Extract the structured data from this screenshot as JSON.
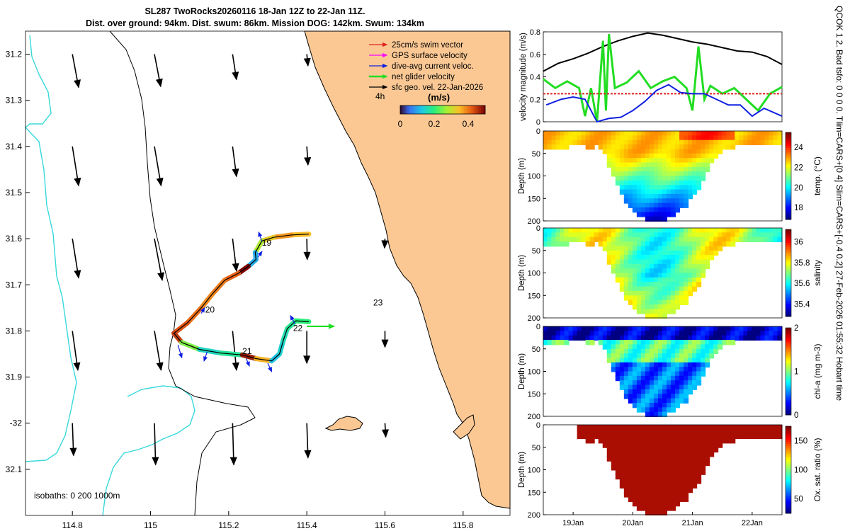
{
  "header": {
    "title_line1": "SL287 TwoRocks20260116 18-Jan 12Z to 22-Jan 11Z.",
    "title_line2": "Dist. over ground: 94km. Dist. swum: 86km. Mission DOG: 142km. Swum: 134km"
  },
  "side_note": "QCOK 1  2. Bad tsfo: 0  0  0  0. Tlim=CARS+[0 4] Slim=CARS+[-0.4 0.2] 27-Feb-2026 01:55:32 Hobart time",
  "colors": {
    "land": "#fbc894",
    "coast": "#000000",
    "isobath": "#38d8dc",
    "swim_vector": "#e02020",
    "gps_velocity": "#ff00ff",
    "current": "#1020e0",
    "net_glider": "#22dd22",
    "sfc_geo": "#000000",
    "speed_line": "#000000"
  },
  "map": {
    "xlim": [
      114.68,
      115.92
    ],
    "ylim": [
      -32.2,
      -31.15
    ],
    "xticks": [
      114.8,
      115,
      115.2,
      115.4,
      115.6,
      115.8
    ],
    "xtick_labels": [
      "114.8",
      "115",
      "115.2",
      "115.4",
      "115.6",
      "115.8"
    ],
    "yticks": [
      -31.2,
      -31.3,
      -31.4,
      -31.5,
      -31.6,
      -31.7,
      -31.8,
      -31.9,
      -32.0,
      -32.1
    ],
    "ytick_labels": [
      "31.2",
      "31.3",
      "31.4",
      "31.5",
      "31.6",
      "31.7",
      "31.8",
      "31.9",
      "-32",
      "32.1"
    ],
    "legend": {
      "items": [
        "25cm/s swim vector",
        "GPS surface velocity",
        "dive-avg current veloc.",
        "net glider velocity",
        "sfc geo. vel. 22-Jan-2026"
      ],
      "time_step": "4h",
      "colorbar_title": "(m/s)",
      "colorbar_ticks": [
        "0",
        "0.2",
        "0.4"
      ],
      "colorbar_range": [
        0,
        0.5
      ]
    },
    "day_labels": [
      {
        "text": "19",
        "lon": 115.285,
        "lat": -31.615
      },
      {
        "text": "20",
        "lon": 115.14,
        "lat": -31.76
      },
      {
        "text": "21",
        "lon": 115.235,
        "lat": -31.85
      },
      {
        "text": "22",
        "lon": 115.365,
        "lat": -31.8
      },
      {
        "text": "23",
        "lon": 115.57,
        "lat": -31.745
      }
    ],
    "isobath_label": "isobaths: 0   200   1000m",
    "track": [
      [
        115.405,
        -31.59
      ],
      [
        115.36,
        -31.592
      ],
      [
        115.315,
        -31.597
      ],
      [
        115.285,
        -31.605
      ],
      [
        115.268,
        -31.63
      ],
      [
        115.27,
        -31.645
      ],
      [
        115.25,
        -31.66
      ],
      [
        115.225,
        -31.675
      ],
      [
        115.19,
        -31.69
      ],
      [
        115.158,
        -31.72
      ],
      [
        115.128,
        -31.752
      ],
      [
        115.095,
        -31.782
      ],
      [
        115.06,
        -31.805
      ],
      [
        115.08,
        -31.825
      ],
      [
        115.125,
        -31.84
      ],
      [
        115.18,
        -31.848
      ],
      [
        115.235,
        -31.852
      ],
      [
        115.27,
        -31.86
      ],
      [
        115.31,
        -31.865
      ],
      [
        115.33,
        -31.85
      ],
      [
        115.34,
        -31.82
      ],
      [
        115.35,
        -31.795
      ],
      [
        115.372,
        -31.778
      ],
      [
        115.405,
        -31.78
      ]
    ],
    "track_speed": [
      0.35,
      0.38,
      0.33,
      0.28,
      0.1,
      0.1,
      0.5,
      0.42,
      0.4,
      0.39,
      0.41,
      0.43,
      0.45,
      0.25,
      0.15,
      0.18,
      0.48,
      0.36,
      0.12,
      0.14,
      0.16,
      0.18,
      0.2,
      0.2
    ],
    "current_vectors": [
      [
        115.285,
        -31.606,
        -0.008,
        0.02
      ],
      [
        115.275,
        -31.64,
        0.01,
        0.012
      ],
      [
        115.13,
        -31.762,
        0.008,
        0.012
      ],
      [
        115.07,
        -31.83,
        0.01,
        -0.028
      ],
      [
        115.145,
        -31.845,
        -0.008,
        -0.02
      ],
      [
        115.245,
        -31.86,
        0.008,
        -0.016
      ],
      [
        115.3,
        -31.87,
        0.01,
        -0.018
      ],
      [
        115.37,
        -31.785,
        -0.012,
        0.018
      ]
    ],
    "net_glider_vector": [
      115.4,
      -31.79,
      0.07,
      0.0
    ],
    "current_field": [
      {
        "lon": 114.8,
        "lat": -31.2,
        "u": 0.016,
        "v": -0.072
      },
      {
        "lon": 115.01,
        "lat": -31.2,
        "u": 0.016,
        "v": -0.07
      },
      {
        "lon": 115.21,
        "lat": -31.2,
        "u": 0.01,
        "v": -0.055
      },
      {
        "lon": 115.4,
        "lat": -31.2,
        "u": 0.003,
        "v": -0.025
      },
      {
        "lon": 114.8,
        "lat": -31.4,
        "u": 0.016,
        "v": -0.085
      },
      {
        "lon": 115.01,
        "lat": -31.4,
        "u": 0.017,
        "v": -0.085
      },
      {
        "lon": 115.21,
        "lat": -31.4,
        "u": 0.01,
        "v": -0.065
      },
      {
        "lon": 115.4,
        "lat": -31.4,
        "u": 0.003,
        "v": -0.04
      },
      {
        "lon": 114.8,
        "lat": -31.6,
        "u": 0.016,
        "v": -0.085
      },
      {
        "lon": 115.01,
        "lat": -31.6,
        "u": 0.02,
        "v": -0.09
      },
      {
        "lon": 115.21,
        "lat": -31.6,
        "u": 0.01,
        "v": -0.07
      },
      {
        "lon": 115.4,
        "lat": -31.6,
        "u": 0.001,
        "v": -0.045
      },
      {
        "lon": 115.6,
        "lat": -31.6,
        "u": -0.001,
        "v": -0.02
      },
      {
        "lon": 114.8,
        "lat": -31.8,
        "u": 0.014,
        "v": -0.085
      },
      {
        "lon": 115.01,
        "lat": -31.8,
        "u": 0.017,
        "v": -0.085
      },
      {
        "lon": 115.21,
        "lat": -31.8,
        "u": 0.01,
        "v": -0.085
      },
      {
        "lon": 115.4,
        "lat": -31.8,
        "u": 0.0,
        "v": -0.07
      },
      {
        "lon": 115.6,
        "lat": -31.8,
        "u": 0.0,
        "v": -0.035
      },
      {
        "lon": 114.8,
        "lat": -32.0,
        "u": 0.003,
        "v": -0.07
      },
      {
        "lon": 115.01,
        "lat": -32.0,
        "u": 0.003,
        "v": -0.09
      },
      {
        "lon": 115.21,
        "lat": -32.0,
        "u": 0.003,
        "v": -0.09
      },
      {
        "lon": 115.4,
        "lat": -32.0,
        "u": 0.003,
        "v": -0.075
      },
      {
        "lon": 115.6,
        "lat": -32.0,
        "u": 0.002,
        "v": -0.03
      }
    ]
  },
  "chart_data": [
    {
      "type": "line",
      "title": "",
      "xlabel": "",
      "ylabel": "velocity magnitude (m/s)",
      "xlim": [
        18.5,
        22.5
      ],
      "ylim": [
        0,
        0.8
      ],
      "yticks": [
        0,
        0.2,
        0.4,
        0.6,
        0.8
      ],
      "ytick_labels": [
        "0",
        "0.2",
        "0.4",
        "0.6",
        "0.8"
      ],
      "series": [
        {
          "name": "sfc geo. speed",
          "color": "#000000",
          "x": [
            18.5,
            18.75,
            19.0,
            19.25,
            19.5,
            19.75,
            20.0,
            20.25,
            20.5,
            20.75,
            21.0,
            21.25,
            21.5,
            21.75,
            22.0,
            22.25,
            22.5
          ],
          "y": [
            0.45,
            0.52,
            0.56,
            0.61,
            0.67,
            0.72,
            0.76,
            0.79,
            0.77,
            0.74,
            0.71,
            0.69,
            0.66,
            0.63,
            0.62,
            0.58,
            0.51
          ]
        },
        {
          "name": "net glider velocity",
          "color": "#22dd22",
          "x": [
            18.5,
            18.7,
            18.9,
            19.1,
            19.2,
            19.3,
            19.4,
            19.5,
            19.55,
            19.6,
            19.7,
            19.9,
            20.1,
            20.3,
            20.5,
            20.7,
            20.9,
            21.0,
            21.1,
            21.2,
            21.3,
            21.5,
            21.7,
            21.9,
            22.1,
            22.3,
            22.5
          ],
          "y": [
            0.38,
            0.3,
            0.36,
            0.3,
            0.05,
            0.3,
            0.0,
            0.72,
            0.1,
            0.78,
            0.3,
            0.35,
            0.45,
            0.3,
            0.36,
            0.4,
            0.3,
            0.1,
            0.67,
            0.2,
            0.32,
            0.25,
            0.3,
            0.2,
            0.1,
            0.25,
            0.31
          ]
        },
        {
          "name": "25cm/s swim vector",
          "color": "#e02020",
          "x": [
            18.5,
            22.5
          ],
          "y": [
            0.25,
            0.25
          ]
        },
        {
          "name": "dive-avg current",
          "color": "#1020e0",
          "x": [
            18.55,
            18.8,
            19.0,
            19.2,
            19.4,
            19.6,
            19.8,
            20.0,
            20.2,
            20.4,
            20.6,
            20.8,
            21.0,
            21.2,
            21.4,
            21.6,
            21.8,
            22.0,
            22.2,
            22.5
          ],
          "y": [
            0.15,
            0.2,
            0.22,
            0.2,
            0.0,
            0.03,
            0.04,
            0.1,
            0.18,
            0.28,
            0.33,
            0.26,
            0.25,
            0.25,
            0.2,
            0.15,
            0.15,
            0.05,
            0.12,
            0.05
          ]
        }
      ]
    },
    {
      "type": "heatmap",
      "variable": "temperature",
      "ylabel": "Depth (m)",
      "colorbar_label": "temp. (°C)",
      "clim": [
        16.8,
        25.5
      ],
      "colorbar_ticks": [
        "18",
        "20",
        "22",
        "24"
      ],
      "colorbar_tick_values": [
        18,
        20,
        22,
        24
      ],
      "ylim": [
        0,
        200
      ],
      "yticks": [
        "0",
        "50",
        "100",
        "150",
        "200"
      ],
      "surface_value": 22.8,
      "deep_value": 17.2
    },
    {
      "type": "heatmap",
      "variable": "salinity",
      "ylabel": "Depth (m)",
      "colorbar_label": "salinity",
      "clim": [
        35.28,
        36.12
      ],
      "colorbar_ticks": [
        "35.4",
        "35.6",
        "35.8",
        "36"
      ],
      "colorbar_tick_values": [
        35.4,
        35.6,
        35.8,
        36.0
      ],
      "ylim": [
        0,
        200
      ],
      "yticks": [
        "0",
        "50",
        "100",
        "150",
        "200"
      ],
      "surface_value": 35.78,
      "deep_value": 35.6
    },
    {
      "type": "heatmap",
      "variable": "chl-a",
      "ylabel": "Depth (m)",
      "colorbar_label": "chl-a  (mg m-3)",
      "clim": [
        0,
        2
      ],
      "colorbar_ticks": [
        "0",
        "1",
        "2"
      ],
      "colorbar_tick_values": [
        0,
        1,
        2
      ],
      "ylim": [
        0,
        200
      ],
      "yticks": [
        "0",
        "50",
        "100",
        "150",
        "200"
      ],
      "surface_value": 0.15,
      "deep_value": 0.35
    },
    {
      "type": "heatmap",
      "variable": "oxygen saturation",
      "ylabel": "Depth (m)",
      "colorbar_label": "Ox. sat. ratio (%)",
      "clim": [
        25,
        175
      ],
      "colorbar_ticks": [
        "50",
        "100",
        "150"
      ],
      "colorbar_tick_values": [
        50,
        100,
        150
      ],
      "ylim": [
        0,
        200
      ],
      "yticks": [
        "0",
        "50",
        "100",
        "150",
        "200"
      ],
      "surface_value": 170,
      "deep_value": 170
    }
  ],
  "profile": {
    "xlim": [
      18.5,
      22.5
    ],
    "xticks": [
      19,
      20,
      21,
      22
    ],
    "xtick_labels": [
      "19Jan",
      "20Jan",
      "21Jan",
      "22Jan"
    ],
    "depth_envelope_x": [
      18.5,
      18.9,
      19.1,
      19.3,
      19.4,
      19.5,
      19.7,
      19.9,
      20.1,
      20.3,
      20.5,
      20.7,
      20.9,
      21.1,
      21.3,
      21.5,
      21.7,
      21.9,
      22.1,
      22.3,
      22.5
    ],
    "depth_envelope_y": [
      38,
      38,
      25,
      42,
      30,
      40,
      110,
      160,
      185,
      200,
      200,
      185,
      165,
      130,
      75,
      40,
      35,
      30,
      30,
      32,
      25
    ]
  }
}
